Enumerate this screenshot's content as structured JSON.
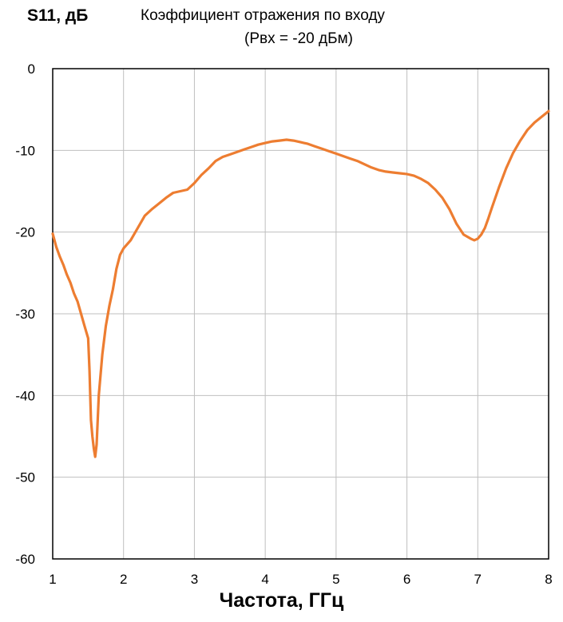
{
  "chart_data": {
    "type": "line",
    "title": "Коэффициент отражения по входу",
    "subtitle": "(Pвх = -20 дБм)",
    "ylabel": "S11, дБ",
    "xlabel": "Частота, ГГц",
    "xlim": [
      1,
      8
    ],
    "ylim": [
      -60,
      0
    ],
    "xticks": [
      "1",
      "2",
      "3",
      "4",
      "5",
      "6",
      "7",
      "8"
    ],
    "yticks": [
      "0",
      "-10",
      "-20",
      "-30",
      "-40",
      "-50",
      "-60"
    ],
    "grid": true,
    "line_color": "#ed7d31",
    "series": [
      {
        "x": [
          1.0,
          1.05,
          1.1,
          1.15,
          1.2,
          1.25,
          1.3,
          1.35,
          1.4,
          1.45,
          1.5,
          1.52,
          1.54,
          1.56,
          1.58,
          1.6,
          1.62,
          1.65,
          1.7,
          1.75,
          1.8,
          1.85,
          1.9,
          1.95,
          2.0,
          2.1,
          2.2,
          2.3,
          2.4,
          2.5,
          2.6,
          2.7,
          2.8,
          2.9,
          3.0,
          3.1,
          3.2,
          3.3,
          3.4,
          3.5,
          3.6,
          3.7,
          3.8,
          3.9,
          4.0,
          4.1,
          4.2,
          4.3,
          4.4,
          4.5,
          4.6,
          4.7,
          4.8,
          4.9,
          5.0,
          5.1,
          5.2,
          5.3,
          5.4,
          5.5,
          5.6,
          5.7,
          5.8,
          5.9,
          6.0,
          6.1,
          6.2,
          6.3,
          6.4,
          6.5,
          6.6,
          6.7,
          6.8,
          6.9,
          6.95,
          7.0,
          7.05,
          7.1,
          7.15,
          7.2,
          7.3,
          7.4,
          7.5,
          7.6,
          7.7,
          7.8,
          7.9,
          8.0
        ],
        "y": [
          -20.2,
          -21.8,
          -23.0,
          -24.0,
          -25.2,
          -26.2,
          -27.5,
          -28.5,
          -30.0,
          -31.5,
          -33.0,
          -37.0,
          -43.0,
          -45.0,
          -46.5,
          -47.5,
          -46.0,
          -40.0,
          -35.0,
          -31.5,
          -29.0,
          -27.0,
          -24.5,
          -22.8,
          -22.0,
          -21.0,
          -19.5,
          -18.0,
          -17.2,
          -16.5,
          -15.8,
          -15.2,
          -15.0,
          -14.8,
          -14.0,
          -13.0,
          -12.2,
          -11.3,
          -10.8,
          -10.5,
          -10.2,
          -9.9,
          -9.6,
          -9.3,
          -9.1,
          -8.9,
          -8.8,
          -8.7,
          -8.8,
          -9.0,
          -9.2,
          -9.5,
          -9.8,
          -10.1,
          -10.4,
          -10.7,
          -11.0,
          -11.3,
          -11.7,
          -12.1,
          -12.4,
          -12.6,
          -12.7,
          -12.8,
          -12.9,
          -13.1,
          -13.5,
          -14.0,
          -14.8,
          -15.8,
          -17.2,
          -19.0,
          -20.3,
          -20.8,
          -21.0,
          -20.8,
          -20.3,
          -19.5,
          -18.3,
          -17.0,
          -14.5,
          -12.2,
          -10.3,
          -8.8,
          -7.5,
          -6.6,
          -5.9,
          -5.2
        ]
      }
    ]
  }
}
